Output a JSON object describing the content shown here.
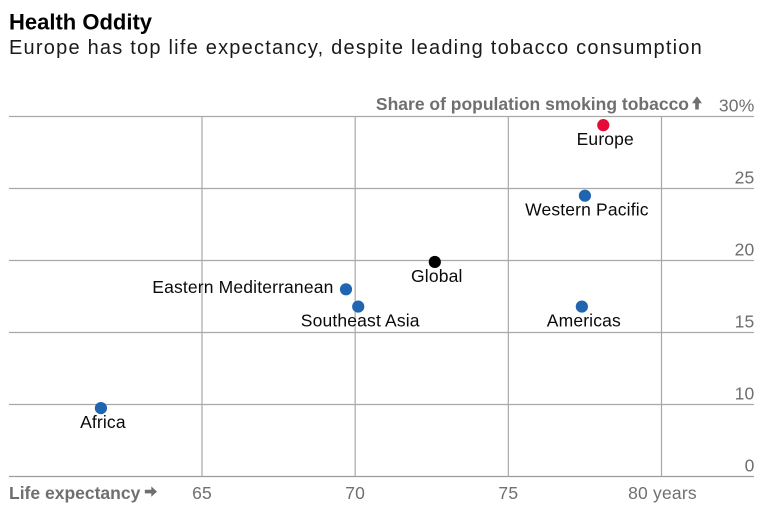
{
  "header": {
    "title": "Health Oddity",
    "subtitle": "Europe has top life expectancy, despite leading tobacco consumption"
  },
  "chart_data": {
    "type": "scatter",
    "title": "Health Oddity",
    "subtitle": "Europe has top life expectancy, despite leading tobacco consumption",
    "x_axis": {
      "label": "Life expectancy",
      "arrow_icon": "right-arrow-icon",
      "ticks": [
        65,
        70,
        75,
        80
      ],
      "tick_labels": [
        "65",
        "70",
        "75",
        "80 years"
      ]
    },
    "y_axis": {
      "label": "Share of population smoking tobacco",
      "arrow_icon": "up-arrow-icon",
      "ticks": [
        0,
        10,
        15,
        20,
        25,
        30
      ],
      "tick_labels": [
        "0",
        "10",
        "15",
        "20",
        "25",
        "30%"
      ],
      "note": "tick rows are evenly spaced; the 0-10 segment is compressed"
    },
    "grid": true,
    "legend": false,
    "points": [
      {
        "name": "Europe",
        "x": 78.1,
        "y": 29.4,
        "color": "#e40b38",
        "label_position": "below"
      },
      {
        "name": "Western Pacific",
        "x": 77.5,
        "y": 24.5,
        "color": "#2065b0",
        "label_position": "below"
      },
      {
        "name": "Global",
        "x": 72.6,
        "y": 19.9,
        "color": "#000000",
        "label_position": "below"
      },
      {
        "name": "Eastern Mediterranean",
        "x": 69.7,
        "y": 18.0,
        "color": "#2065b0",
        "label_position": "left"
      },
      {
        "name": "Southeast Asia",
        "x": 70.1,
        "y": 16.8,
        "color": "#2065b0",
        "label_position": "below"
      },
      {
        "name": "Americas",
        "x": 77.4,
        "y": 16.8,
        "color": "#2065b0",
        "label_position": "below"
      },
      {
        "name": "Africa",
        "x": 61.7,
        "y": 9.5,
        "color": "#2065b0",
        "label_position": "below"
      }
    ]
  },
  "colors": {
    "background": "#ffffff",
    "gridline": "#a8a8a8",
    "baseline": "#9c9c9c",
    "axis_text": "#6f6f6f",
    "label_text": "#0a0a0a",
    "dot_blue": "#2065b0",
    "dot_red": "#e40b38",
    "dot_black": "#000000"
  }
}
